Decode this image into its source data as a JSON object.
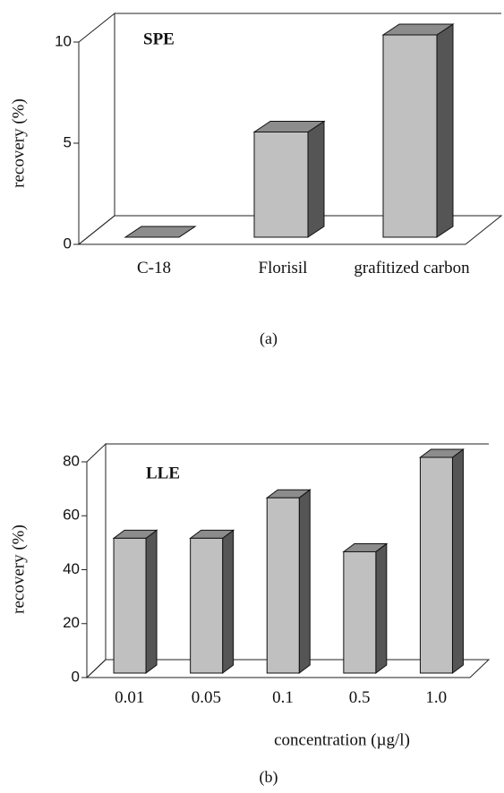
{
  "chart_data": [
    {
      "type": "bar3d",
      "title": "SPE",
      "y_label": "recovery (%)",
      "caption": "(a)",
      "categories": [
        "C-18",
        "Florisil",
        "grafitized carbon"
      ],
      "values": [
        0,
        5.2,
        10
      ],
      "ylim": [
        0,
        10
      ],
      "yticks": [
        0,
        5,
        10
      ],
      "color": "#c0c0c0"
    },
    {
      "type": "bar3d",
      "title": "LLE",
      "y_label": "recovery (%)",
      "x_label": "concentration (µg/l)",
      "caption": "(b)",
      "categories": [
        "0.01",
        "0.05",
        "0.1",
        "0.5",
        "1.0"
      ],
      "values": [
        50,
        50,
        65,
        45,
        80
      ],
      "ylim": [
        0,
        80
      ],
      "yticks": [
        0,
        20,
        40,
        60,
        80
      ],
      "color": "#c0c0c0"
    }
  ]
}
